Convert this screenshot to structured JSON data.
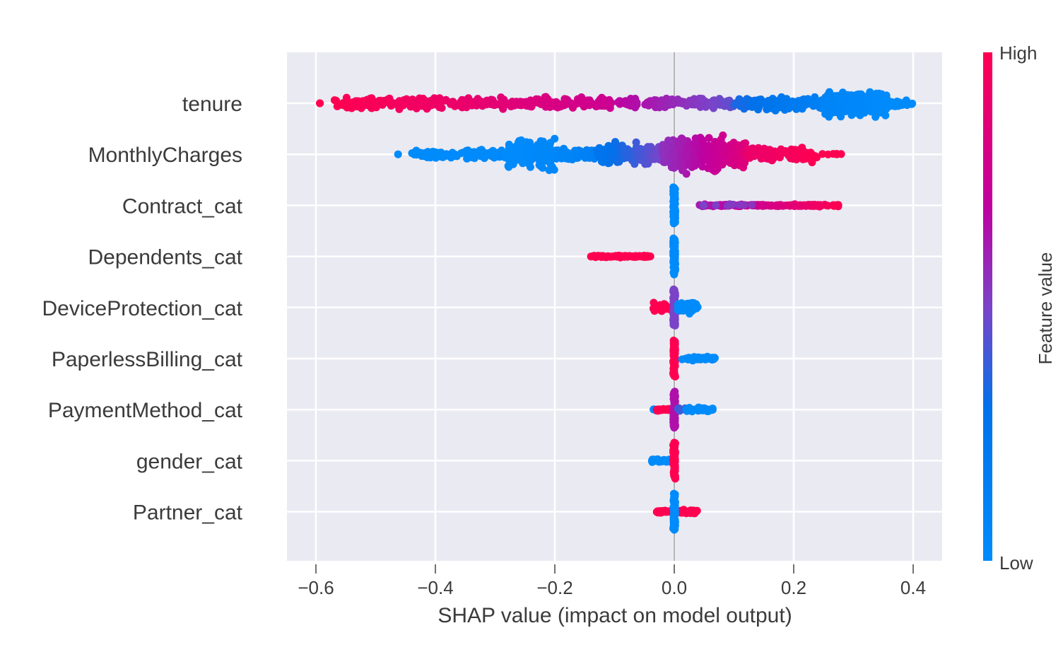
{
  "chart_data": {
    "type": "scatter",
    "subtype": "beeswarm (SHAP summary plot)",
    "title": "",
    "xlabel": "SHAP value (impact on model output)",
    "ylabel": "",
    "xlim": [
      -0.65,
      0.445
    ],
    "xticks": [
      -0.6,
      -0.4,
      -0.2,
      0.0,
      0.2,
      0.4
    ],
    "xtick_labels": [
      "−0.6",
      "−0.4",
      "−0.2",
      "0.0",
      "0.2",
      "0.4"
    ],
    "grid": true,
    "zero_line": true,
    "colorbar": {
      "title": "Feature value",
      "high_label": "High",
      "low_label": "Low",
      "low_color": "#008bfb",
      "mid_color": "#8b3fc0",
      "high_color": "#ff0051"
    },
    "features": [
      {
        "name": "tenure",
        "segments": [
          {
            "x": [
              -0.6,
              -0.59
            ],
            "fv": [
              1.0,
              1.0
            ],
            "n": 2,
            "spread": 0
          },
          {
            "x": [
              -0.57,
              -0.35
            ],
            "fv": [
              1.0,
              0.9
            ],
            "n": 160,
            "spread": 0.35
          },
          {
            "x": [
              -0.35,
              -0.1
            ],
            "fv": [
              0.9,
              0.75
            ],
            "n": 150,
            "spread": 0.35
          },
          {
            "x": [
              -0.1,
              0.1
            ],
            "fv": [
              0.7,
              0.45
            ],
            "n": 130,
            "spread": 0.3
          },
          {
            "x": [
              0.1,
              0.25
            ],
            "fv": [
              0.35,
              0.12
            ],
            "n": 140,
            "spread": 0.4
          },
          {
            "x": [
              0.25,
              0.36
            ],
            "fv": [
              0.08,
              0.0
            ],
            "n": 220,
            "spread": 0.85
          },
          {
            "x": [
              0.36,
              0.4
            ],
            "fv": [
              0.0,
              0.0
            ],
            "n": 25,
            "spread": 0.2
          }
        ]
      },
      {
        "name": "MonthlyCharges",
        "segments": [
          {
            "x": [
              -0.465,
              -0.46
            ],
            "fv": [
              0.0,
              0.0
            ],
            "n": 1,
            "spread": 0
          },
          {
            "x": [
              -0.44,
              -0.28
            ],
            "fv": [
              0.0,
              0.02
            ],
            "n": 110,
            "spread": 0.3
          },
          {
            "x": [
              -0.28,
              -0.2
            ],
            "fv": [
              0.0,
              0.05
            ],
            "n": 140,
            "spread": 0.9
          },
          {
            "x": [
              -0.2,
              -0.13
            ],
            "fv": [
              0.05,
              0.15
            ],
            "n": 80,
            "spread": 0.4
          },
          {
            "x": [
              -0.13,
              -0.02
            ],
            "fv": [
              0.25,
              0.5
            ],
            "n": 160,
            "spread": 0.7
          },
          {
            "x": [
              -0.02,
              0.12
            ],
            "fv": [
              0.55,
              0.85
            ],
            "n": 320,
            "spread": 1.0
          },
          {
            "x": [
              0.12,
              0.24
            ],
            "fv": [
              0.9,
              1.0
            ],
            "n": 110,
            "spread": 0.45
          },
          {
            "x": [
              0.24,
              0.28
            ],
            "fv": [
              1.0,
              1.0
            ],
            "n": 6,
            "spread": 0.05
          }
        ]
      },
      {
        "name": "Contract_cat",
        "segments": [
          {
            "x": [
              0.0,
              0.0
            ],
            "fv": [
              0.0,
              0.0
            ],
            "n": 60,
            "spread": 0.85,
            "vertical": true
          },
          {
            "x": [
              0.035,
              0.28
            ],
            "fv": [
              0.6,
              1.0
            ],
            "n": 180,
            "spread": 0.06
          },
          {
            "x": [
              0.035,
              0.14
            ],
            "fv": [
              0.5,
              0.55
            ],
            "n": 8,
            "spread": 0.08
          }
        ]
      },
      {
        "name": "Dependents_cat",
        "segments": [
          {
            "x": [
              -0.14,
              -0.04
            ],
            "fv": [
              1.0,
              1.0
            ],
            "n": 90,
            "spread": 0.06
          },
          {
            "x": [
              0.0,
              0.0
            ],
            "fv": [
              0.0,
              0.0
            ],
            "n": 60,
            "spread": 0.85,
            "vertical": true
          }
        ]
      },
      {
        "name": "DeviceProtection_cat",
        "segments": [
          {
            "x": [
              -0.035,
              -0.005
            ],
            "fv": [
              1.0,
              1.0
            ],
            "n": 40,
            "spread": 0.25
          },
          {
            "x": [
              0.0,
              0.0
            ],
            "fv": [
              0.5,
              0.5
            ],
            "n": 60,
            "spread": 0.85,
            "vertical": true
          },
          {
            "x": [
              0.005,
              0.04
            ],
            "fv": [
              0.0,
              0.0
            ],
            "n": 45,
            "spread": 0.35
          }
        ]
      },
      {
        "name": "PaperlessBilling_cat",
        "segments": [
          {
            "x": [
              0.0,
              0.0
            ],
            "fv": [
              1.0,
              1.0
            ],
            "n": 60,
            "spread": 0.85,
            "vertical": true
          },
          {
            "x": [
              0.012,
              0.068
            ],
            "fv": [
              0.0,
              0.0
            ],
            "n": 45,
            "spread": 0.12
          }
        ]
      },
      {
        "name": "PaymentMethod_cat",
        "segments": [
          {
            "x": [
              -0.04,
              -0.03
            ],
            "fv": [
              0.0,
              0.0
            ],
            "n": 4,
            "spread": 0.05
          },
          {
            "x": [
              -0.03,
              0.0
            ],
            "fv": [
              1.0,
              1.0
            ],
            "n": 30,
            "spread": 0.1
          },
          {
            "x": [
              0.0,
              0.0
            ],
            "fv": [
              0.65,
              0.65
            ],
            "n": 60,
            "spread": 0.85,
            "vertical": true
          },
          {
            "x": [
              0.005,
              0.02
            ],
            "fv": [
              0.4,
              0.4
            ],
            "n": 8,
            "spread": 0.12
          },
          {
            "x": [
              0.02,
              0.065
            ],
            "fv": [
              0.0,
              0.0
            ],
            "n": 45,
            "spread": 0.12
          }
        ]
      },
      {
        "name": "gender_cat",
        "segments": [
          {
            "x": [
              -0.04,
              -0.005
            ],
            "fv": [
              0.0,
              0.0
            ],
            "n": 40,
            "spread": 0.1
          },
          {
            "x": [
              0.0,
              0.0
            ],
            "fv": [
              1.0,
              1.0
            ],
            "n": 60,
            "spread": 0.85,
            "vertical": true
          }
        ]
      },
      {
        "name": "Partner_cat",
        "segments": [
          {
            "x": [
              -0.03,
              -0.005
            ],
            "fv": [
              1.0,
              1.0
            ],
            "n": 30,
            "spread": 0.08
          },
          {
            "x": [
              0.005,
              0.04
            ],
            "fv": [
              1.0,
              1.0
            ],
            "n": 40,
            "spread": 0.15
          },
          {
            "x": [
              0.0,
              0.0
            ],
            "fv": [
              0.0,
              0.0
            ],
            "n": 60,
            "spread": 0.85,
            "vertical": true
          }
        ]
      }
    ]
  }
}
